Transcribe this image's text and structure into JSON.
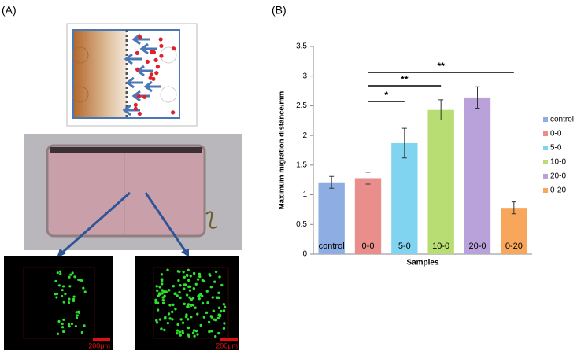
{
  "panel_labels": [
    "(A)",
    "(B)"
  ],
  "scale_bars": [
    "200μm",
    "200μm"
  ],
  "chart_data": {
    "type": "bar",
    "x_label": "Samples",
    "y_label": "Maximum migration distance/mm",
    "categories": [
      "control",
      "0-0",
      "5-0",
      "10-0",
      "20-0",
      "0-20"
    ],
    "values": [
      1.21,
      1.28,
      1.87,
      2.43,
      2.64,
      0.78
    ],
    "errors": [
      0.1,
      0.1,
      0.25,
      0.17,
      0.18,
      0.1
    ],
    "colors": [
      "#8eaee3",
      "#ea8e8c",
      "#80d4f0",
      "#b8dd72",
      "#b9a2da",
      "#f7a65c"
    ],
    "ylim": [
      0,
      3.5
    ],
    "yticks": [
      0,
      0.5,
      1,
      1.5,
      2,
      2.5,
      3,
      3.5
    ],
    "significance": [
      "*",
      "**",
      "**"
    ],
    "legend": "right"
  }
}
